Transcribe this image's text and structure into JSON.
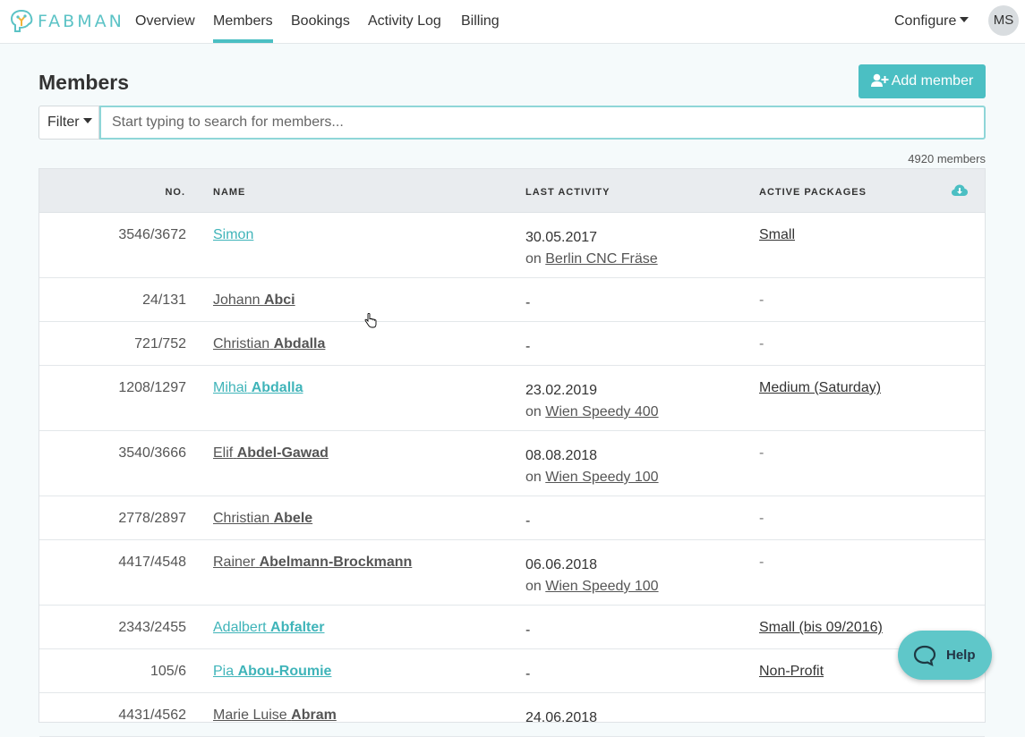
{
  "brand": {
    "name": "FABMAN",
    "accent": "#4bbfc3"
  },
  "nav": {
    "items": [
      {
        "label": "Overview"
      },
      {
        "label": "Members",
        "active": true
      },
      {
        "label": "Bookings"
      },
      {
        "label": "Activity Log"
      },
      {
        "label": "Billing"
      }
    ],
    "configure_label": "Configure",
    "avatar_initials": "MS"
  },
  "page": {
    "title": "Members",
    "add_button_label": "Add member",
    "filter_label": "Filter",
    "search_placeholder": "Start typing to search for members...",
    "member_count": "4920 members"
  },
  "table": {
    "columns": [
      "NO.",
      "NAME",
      "LAST ACTIVITY",
      "ACTIVE PACKAGES"
    ],
    "rows": [
      {
        "no": "3546/3672",
        "first": "Simon",
        "last": "",
        "linked": true,
        "date": "30.05.2017",
        "on": "on",
        "device": "Berlin CNC Fräse",
        "package": "Small"
      },
      {
        "no": "24/131",
        "first": "Johann",
        "last": "Abci",
        "linked": false,
        "date": "-",
        "on": "",
        "device": "",
        "package": "-"
      },
      {
        "no": "721/752",
        "first": "Christian",
        "last": "Abdalla",
        "linked": false,
        "date": "-",
        "on": "",
        "device": "",
        "package": "-"
      },
      {
        "no": "1208/1297",
        "first": "Mihai",
        "last": "Abdalla",
        "linked": true,
        "date": "23.02.2019",
        "on": "on",
        "device": "Wien Speedy 400",
        "package": "Medium (Saturday)"
      },
      {
        "no": "3540/3666",
        "first": "Elif",
        "last": "Abdel-Gawad",
        "linked": false,
        "date": "08.08.2018",
        "on": "on",
        "device": "Wien Speedy 100",
        "package": "-"
      },
      {
        "no": "2778/2897",
        "first": "Christian",
        "last": "Abele",
        "linked": false,
        "date": "-",
        "on": "",
        "device": "",
        "package": "-"
      },
      {
        "no": "4417/4548",
        "first": "Rainer",
        "last": "Abelmann-Brockmann",
        "linked": false,
        "date": "06.06.2018",
        "on": "on",
        "device": "Wien Speedy 100",
        "package": "-"
      },
      {
        "no": "2343/2455",
        "first": "Adalbert",
        "last": "Abfalter",
        "linked": true,
        "date": "-",
        "on": "",
        "device": "",
        "package": "Small (bis 09/2016)"
      },
      {
        "no": "105/6",
        "first": "Pia",
        "last": "Abou-Roumie",
        "linked": true,
        "date": "-",
        "on": "",
        "device": "",
        "package": "Non-Profit"
      },
      {
        "no": "4431/4562",
        "first": "Marie Luise",
        "last": "Abram",
        "linked": false,
        "date": "24.06.2018",
        "on": "",
        "device": "",
        "package": ""
      }
    ]
  },
  "help": {
    "label": "Help"
  }
}
